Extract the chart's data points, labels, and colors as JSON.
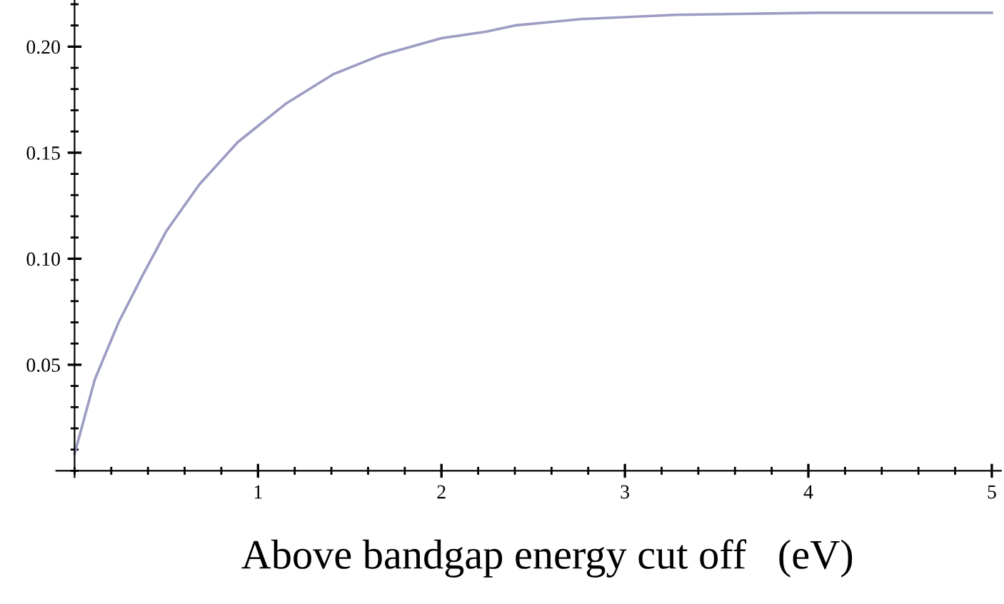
{
  "chart_data": {
    "type": "line",
    "xlabel": "Above bandgap energy cut off   (eV)",
    "x": [
      0,
      0.11,
      0.24,
      0.37,
      0.5,
      0.68,
      0.89,
      1.15,
      1.41,
      1.67,
      2.0,
      2.24,
      2.4,
      2.76,
      3.28,
      4.05,
      5.0
    ],
    "series": [
      {
        "color": "#9c9cc4",
        "values": [
          0.008,
          0.043,
          0.07,
          0.092,
          0.113,
          0.135,
          0.155,
          0.173,
          0.187,
          0.196,
          0.204,
          0.207,
          0.21,
          0.213,
          0.215,
          0.216,
          0.216
        ]
      }
    ],
    "xlim": [
      -0.1,
      5.05
    ],
    "ylim": [
      -0.003,
      0.222
    ],
    "xticks": [
      1,
      2,
      3,
      4,
      5
    ],
    "yticks": [
      0.05,
      {
        "value": 0.1,
        "label": "0.10"
      },
      0.15,
      {
        "value": 0.2,
        "label": "0.20"
      }
    ],
    "grid": false,
    "legend": false,
    "marker": "none",
    "line_style": "solid"
  }
}
